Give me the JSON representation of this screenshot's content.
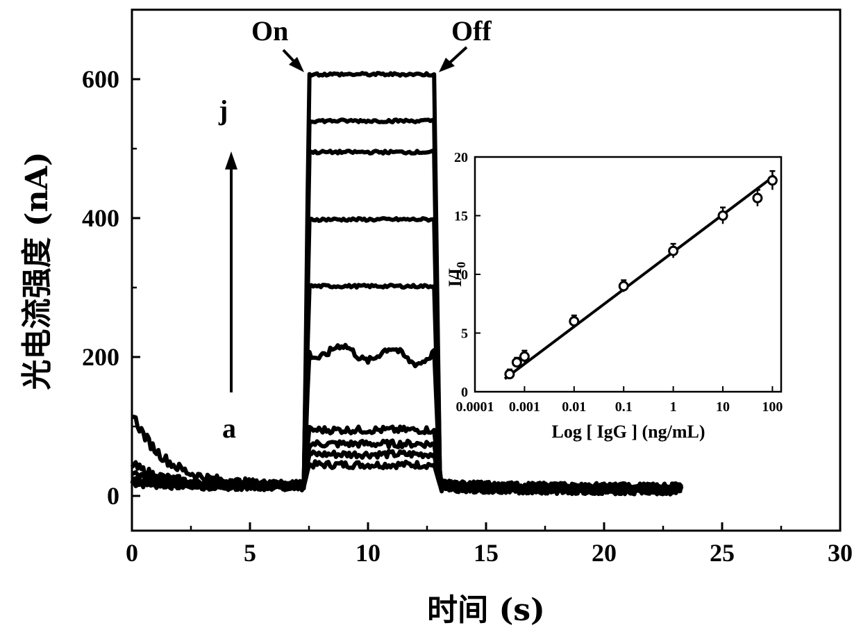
{
  "chart_data": [
    {
      "type": "line",
      "xlabel": "时间 (s)",
      "ylabel": "光电流强度 (nA)",
      "xlim": [
        0,
        30
      ],
      "ylim": [
        -50,
        700
      ],
      "x_ticks": [
        0,
        5,
        10,
        15,
        20,
        25,
        30
      ],
      "y_ticks": [
        0,
        200,
        400,
        600
      ],
      "grid": false,
      "light_on_s": 7.3,
      "light_off_s": 12.8,
      "x_end_s": 23.3,
      "annotations": {
        "on": "On",
        "off": "Off",
        "top_label": "j",
        "bottom_label": "a"
      },
      "series": [
        {
          "baseline_nA": 15,
          "plateau_nA": 45,
          "start_nA": 20
        },
        {
          "baseline_nA": 15,
          "plateau_nA": 60,
          "start_nA": 25
        },
        {
          "baseline_nA": 15,
          "plateau_nA": 75,
          "start_nA": 30
        },
        {
          "baseline_nA": 15,
          "plateau_nA": 95,
          "start_nA": 45
        },
        {
          "baseline_nA": 15,
          "plateau_nA": 210,
          "start_nA": 120
        },
        {
          "baseline_nA": 15,
          "plateau_nA": 302,
          "start_nA": 20
        },
        {
          "baseline_nA": 15,
          "plateau_nA": 398,
          "start_nA": 20
        },
        {
          "baseline_nA": 15,
          "plateau_nA": 495,
          "start_nA": 20
        },
        {
          "baseline_nA": 15,
          "plateau_nA": 540,
          "start_nA": 20
        },
        {
          "baseline_nA": 15,
          "plateau_nA": 607,
          "start_nA": 20
        }
      ]
    },
    {
      "type": "scatter",
      "xlabel": "Log [ IgG ] (ng/mL)",
      "ylabel_main": "I/I",
      "ylabel_sub": "0",
      "x_scale": "log",
      "xlim": [
        0.0001,
        150
      ],
      "ylim": [
        0,
        20
      ],
      "x_ticks": [
        0.0001,
        0.001,
        0.01,
        0.1,
        1,
        10,
        100
      ],
      "x_tick_labels": [
        "0.0001",
        "0.001",
        "0.01",
        "0.1",
        "1",
        "10",
        "100"
      ],
      "y_ticks": [
        0,
        5,
        10,
        15,
        20
      ],
      "points": [
        {
          "x": 0.0005,
          "y": 1.5,
          "err": 0.4
        },
        {
          "x": 0.0007,
          "y": 2.5,
          "err": 0.4
        },
        {
          "x": 0.001,
          "y": 3.0,
          "err": 0.5
        },
        {
          "x": 0.01,
          "y": 6.0,
          "err": 0.5
        },
        {
          "x": 0.1,
          "y": 9.0,
          "err": 0.5
        },
        {
          "x": 1,
          "y": 12.0,
          "err": 0.6
        },
        {
          "x": 10,
          "y": 15.0,
          "err": 0.7
        },
        {
          "x": 50,
          "y": 16.5,
          "err": 0.7
        },
        {
          "x": 100,
          "y": 18.0,
          "err": 0.8
        }
      ],
      "fit_line": {
        "x": [
          0.0004,
          110
        ],
        "y": [
          1.1,
          18.4
        ]
      }
    }
  ]
}
